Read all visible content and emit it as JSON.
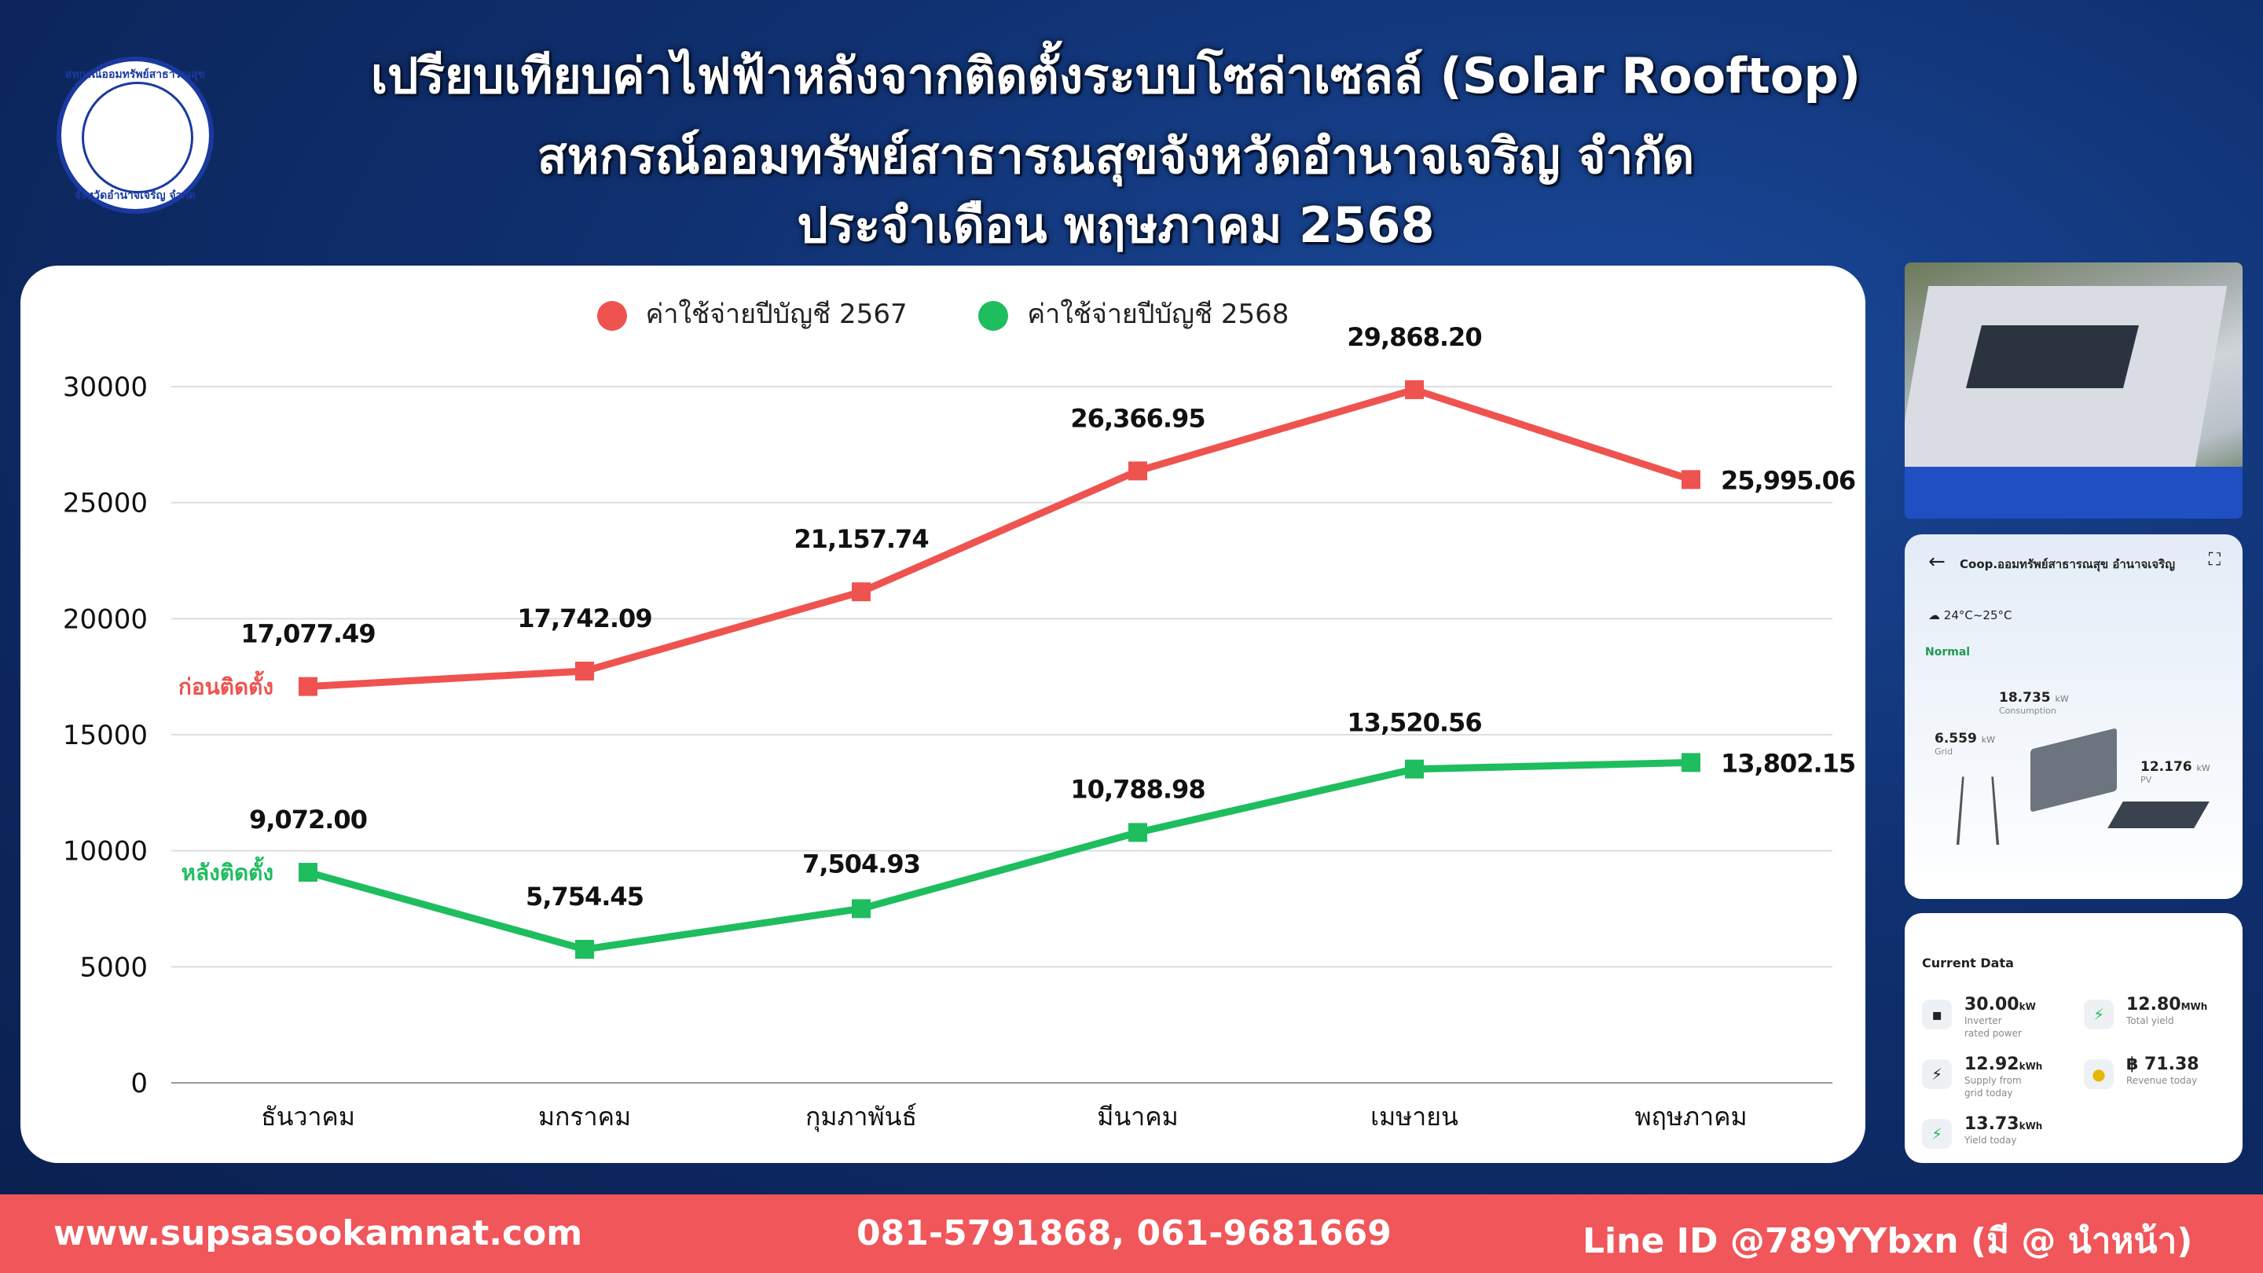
{
  "header": {
    "title_line1": "เปรียบเทียบค่าไฟฟ้าหลังจากติดตั้งระบบโซล่าเซลล์ (Solar Rooftop)",
    "title_line2": "สหกรณ์ออมทรัพย์สาธารณสุขจังหวัดอำนาจเจริญ จำกัด",
    "title_line3": "ประจำเดือน พฤษภาคม 2568"
  },
  "logo": {
    "text_top": "สหกรณ์ออมทรัพย์สาธารณสุข",
    "text_bottom": "จังหวัดอำนาจเจริญ จำกัด"
  },
  "chart_data": {
    "type": "line",
    "categories": [
      "ธันวาคม",
      "มกราคม",
      "กุมภาพันธ์",
      "มีนาคม",
      "เมษายน",
      "พฤษภาคม"
    ],
    "series": [
      {
        "name": "ค่าใช้จ่ายปีบัญชี 2567",
        "line_label": "ก่อนติดตั้ง",
        "color": "#ef5350",
        "values": [
          17077.49,
          17742.09,
          21157.74,
          26366.95,
          29868.2,
          25995.06
        ],
        "labels": [
          "17,077.49",
          "17,742.09",
          "21,157.74",
          "26,366.95",
          "29,868.20",
          "25,995.06"
        ]
      },
      {
        "name": "ค่าใช้จ่ายปีบัญชี 2568",
        "line_label": "หลังติดตั้ง",
        "color": "#1ebd5e",
        "values": [
          9072.0,
          5754.45,
          7504.93,
          10788.98,
          13520.56,
          13802.15
        ],
        "labels": [
          "9,072.00",
          "5,754.45",
          "7,504.93",
          "10,788.98",
          "13,520.56",
          "13,802.15"
        ]
      }
    ],
    "yticks": [
      "0",
      "5000",
      "10000",
      "15000",
      "20000",
      "25000",
      "30000"
    ],
    "ylim": [
      0,
      30000
    ],
    "grid": true,
    "legend_position": "top-center"
  },
  "monitor_app": {
    "title": "Coop.ออมทรัพย์สาธารณสุข อำนาจเจริญ",
    "weather": "24°C~25°C",
    "status": "Normal",
    "consumption_value": "18.735",
    "consumption_unit": "kW",
    "consumption_label": "Consumption",
    "grid_value": "6.559",
    "grid_unit": "kW",
    "grid_label": "Grid",
    "pv_value": "12.176",
    "pv_unit": "kW",
    "pv_label": "PV"
  },
  "current_data": {
    "title": "Current Data",
    "inverter_value": "30.00",
    "inverter_unit": "kW",
    "inverter_label_1": "Inverter",
    "inverter_label_2": "rated power",
    "total_yield_value": "12.80",
    "total_yield_unit": "MWh",
    "total_yield_label": "Total yield",
    "supply_value": "12.92",
    "supply_unit": "kWh",
    "supply_label_1": "Supply from",
    "supply_label_2": "grid today",
    "revenue_value": "฿ 71.38",
    "revenue_label": "Revenue today",
    "yield_today_value": "13.73",
    "yield_today_unit": "kWh",
    "yield_today_label": "Yield today"
  },
  "footer": {
    "website": "www.supsasookamnat.com",
    "phone": "081-5791868, 061-9681669",
    "line": "Line ID @789YYbxn (มี @ นำหน้า)"
  }
}
